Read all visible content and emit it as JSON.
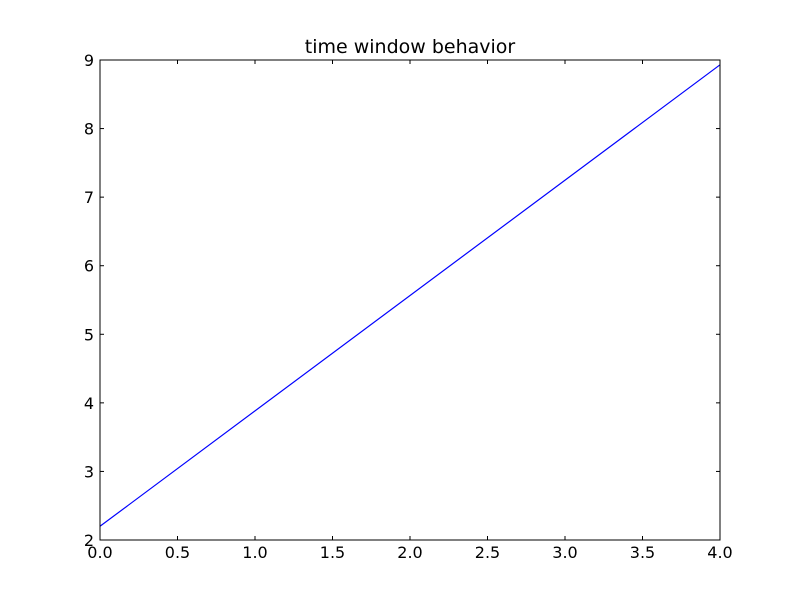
{
  "chart_data": {
    "type": "line",
    "title": "time window behavior",
    "xlabel": "",
    "ylabel": "",
    "xlim": [
      0.0,
      4.0
    ],
    "ylim": [
      2,
      9
    ],
    "x_ticks": [
      "0.0",
      "0.5",
      "1.0",
      "1.5",
      "2.0",
      "2.5",
      "3.0",
      "3.5",
      "4.0"
    ],
    "y_ticks": [
      "2",
      "3",
      "4",
      "5",
      "6",
      "7",
      "8",
      "9"
    ],
    "grid": false,
    "legend": "none",
    "series": [
      {
        "color": "#0000ff",
        "x": [
          0.0,
          4.0
        ],
        "y": [
          2.2,
          8.93
        ]
      }
    ]
  }
}
